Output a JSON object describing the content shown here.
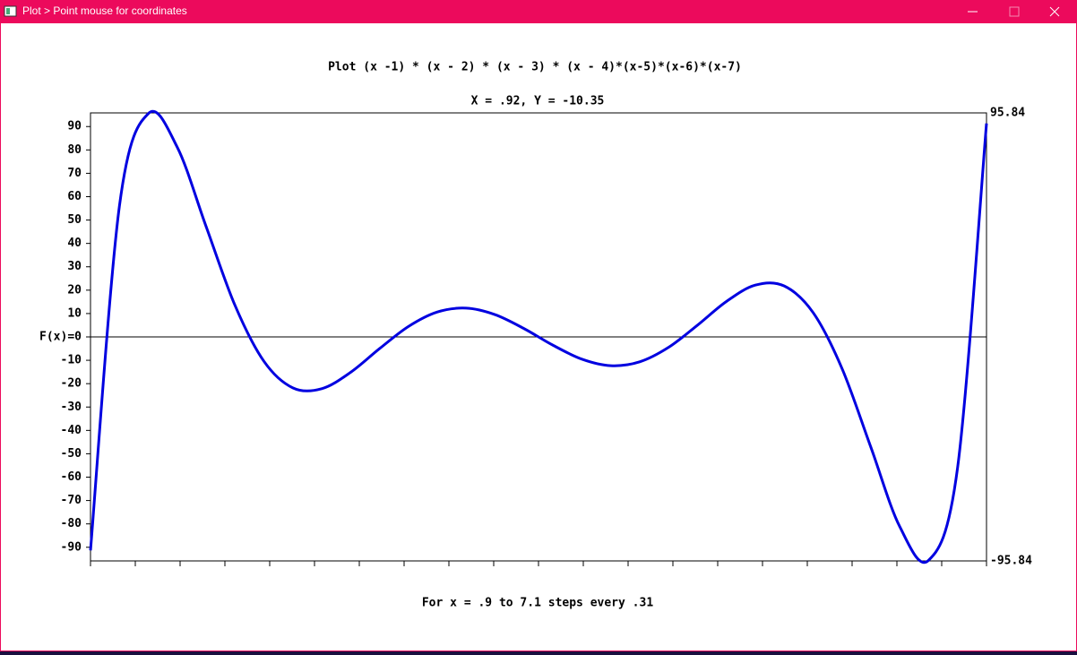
{
  "window": {
    "title": "Plot > Point mouse for coordinates"
  },
  "chart_data": {
    "type": "line",
    "title": "Plot (x -1) * (x - 2) * (x - 3) * (x - 4)*(x-5)*(x-6)*(x-7)",
    "subtitle": "X = .92, Y = -10.35",
    "x_label": "For x = .9 to 7.1 steps every .31",
    "x": [
      0.9,
      1.1,
      1.3,
      1.5,
      1.7,
      1.9,
      2.1,
      2.3,
      2.5,
      2.7,
      2.9,
      3.1,
      3.3,
      3.5,
      3.7,
      3.9,
      4.1,
      4.3,
      4.5,
      4.7,
      4.9,
      5.1,
      5.3,
      5.5,
      5.7,
      5.9,
      6.1,
      6.3,
      6.5,
      6.7,
      6.9,
      7.1
    ],
    "series": [
      {
        "color": "#0000e0",
        "values": [
          -91.339,
          55.912,
          95.545,
          81.211,
          47.223,
          13.477,
          -10.424,
          -21.791,
          -22.148,
          -15.147,
          -5.021,
          4.468,
          10.664,
          12.305,
          9.511,
          3.551,
          -3.551,
          -9.511,
          -12.305,
          -10.664,
          -4.468,
          5.021,
          15.147,
          22.148,
          21.791,
          10.424,
          -13.477,
          -47.223,
          -81.211,
          -95.545,
          -55.912,
          91.339
        ]
      }
    ],
    "xlim": [
      0.9,
      7.1
    ],
    "xticks": [
      0.9,
      1.21,
      1.52,
      1.83,
      2.14,
      2.45,
      2.76,
      3.07,
      3.38,
      3.69,
      4.0,
      4.31,
      4.62,
      4.93,
      5.24,
      5.55,
      5.86,
      6.17,
      6.48,
      6.79,
      7.1
    ],
    "ylim": [
      -95.84,
      95.84
    ],
    "yticks": [
      -90,
      -80,
      -70,
      -60,
      -50,
      -40,
      -30,
      -20,
      -10,
      {
        "value": 0,
        "label": "F(x)=0"
      },
      10,
      20,
      30,
      40,
      50,
      60,
      70,
      80,
      90
    ]
  }
}
